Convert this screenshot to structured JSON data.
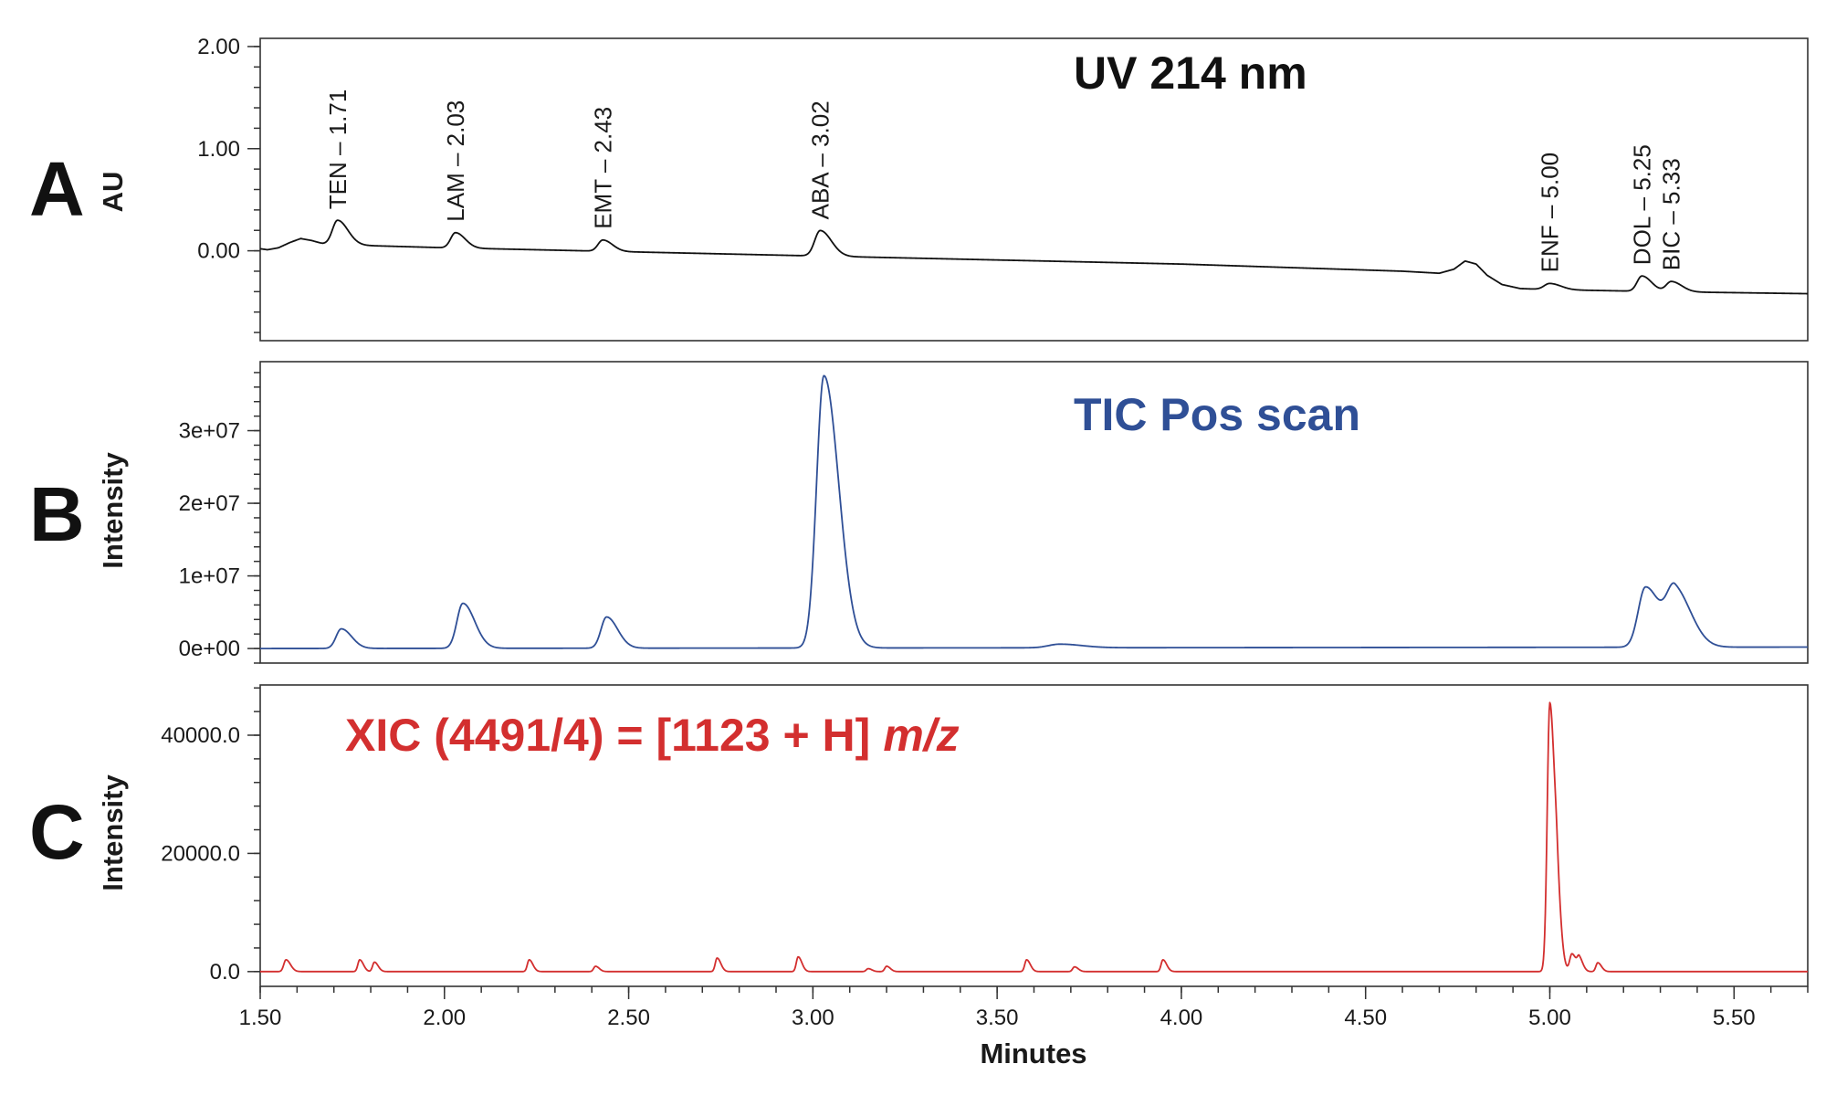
{
  "chart_data": [
    {
      "panel": "A",
      "type": "line",
      "title": "UV 214 nm",
      "ylabel": "AU",
      "xlabel": "",
      "xlim": [
        1.5,
        5.7
      ],
      "ylim": [
        -0.88,
        2.08
      ],
      "y_ticks": [
        "2.00",
        "1.00",
        "0.00"
      ],
      "y_tick_values": [
        2.0,
        1.0,
        0.0
      ],
      "color": "#111111",
      "grid": false,
      "baseline": [
        [
          1.5,
          0.02
        ],
        [
          1.52,
          0.01
        ],
        [
          1.55,
          0.03
        ],
        [
          1.58,
          0.08
        ],
        [
          1.61,
          0.12
        ],
        [
          1.64,
          0.1
        ],
        [
          1.67,
          0.07
        ],
        [
          1.7,
          0.06
        ],
        [
          2.0,
          0.03
        ],
        [
          3.0,
          -0.05
        ],
        [
          4.0,
          -0.13
        ],
        [
          4.6,
          -0.2
        ],
        [
          4.7,
          -0.22
        ],
        [
          4.74,
          -0.18
        ],
        [
          4.77,
          -0.1
        ],
        [
          4.8,
          -0.13
        ],
        [
          4.83,
          -0.24
        ],
        [
          4.87,
          -0.33
        ],
        [
          4.92,
          -0.37
        ],
        [
          5.0,
          -0.38
        ],
        [
          5.3,
          -0.4
        ],
        [
          5.7,
          -0.42
        ]
      ],
      "peaks": [
        {
          "label": "TEN – 1.71",
          "rt": 1.71,
          "height": 0.24,
          "width": 0.014
        },
        {
          "label": "LAM – 2.03",
          "rt": 2.03,
          "height": 0.15,
          "width": 0.013
        },
        {
          "label": "EMT – 2.43",
          "rt": 2.43,
          "height": 0.11,
          "width": 0.013
        },
        {
          "label": "ABA – 3.02",
          "rt": 3.02,
          "height": 0.25,
          "width": 0.015
        },
        {
          "label": "ENF – 5.00",
          "rt": 5.0,
          "height": 0.06,
          "width": 0.015
        },
        {
          "label": "DOL – 5.25",
          "rt": 5.25,
          "height": 0.15,
          "width": 0.013
        },
        {
          "label": "BIC – 5.33",
          "rt": 5.33,
          "height": 0.1,
          "width": 0.014
        }
      ]
    },
    {
      "panel": "B",
      "type": "line",
      "title": "TIC Pos scan",
      "ylabel": "Intensity",
      "xlabel": "",
      "xlim": [
        1.5,
        5.7
      ],
      "ylim": [
        -2000000,
        39500000
      ],
      "y_ticks": [
        "3e+07",
        "2e+07",
        "1e+07",
        "0e+00"
      ],
      "y_tick_values": [
        30000000,
        20000000,
        10000000,
        0
      ],
      "color": "#2f4f96",
      "grid": false,
      "baseline": [
        [
          1.5,
          0
        ],
        [
          3.6,
          100000
        ],
        [
          5.7,
          200000
        ]
      ],
      "peaks": [
        {
          "rt": 1.72,
          "height": 2700000,
          "width": 0.014
        },
        {
          "rt": 2.05,
          "height": 6200000,
          "width": 0.016
        },
        {
          "rt": 2.44,
          "height": 4300000,
          "width": 0.015
        },
        {
          "rt": 3.03,
          "height": 37500000,
          "width": 0.02
        },
        {
          "rt": 3.67,
          "height": 500000,
          "width": 0.03
        },
        {
          "rt": 5.26,
          "height": 8300000,
          "width": 0.02
        },
        {
          "rt": 5.34,
          "height": 7600000,
          "width": 0.022
        }
      ]
    },
    {
      "panel": "C",
      "type": "line",
      "title": "XIC (4491/4) = [1123 + H]",
      "title_suffix": "m/z",
      "ylabel": "Intensity",
      "xlabel": "Minutes",
      "xlim": [
        1.5,
        5.7
      ],
      "ylim": [
        -2500,
        48500
      ],
      "y_ticks": [
        "40000.0",
        "20000.0",
        "0.0"
      ],
      "y_tick_values": [
        40000,
        20000,
        0
      ],
      "x_ticks": [
        "1.50",
        "2.00",
        "2.50",
        "3.00",
        "3.50",
        "4.00",
        "4.50",
        "5.00",
        "5.50"
      ],
      "x_tick_values": [
        1.5,
        2.0,
        2.5,
        3.0,
        3.5,
        4.0,
        4.5,
        5.0,
        5.5
      ],
      "color": "#d32f2f",
      "grid": false,
      "baseline": [
        [
          1.5,
          0
        ],
        [
          5.7,
          0
        ]
      ],
      "peaks": [
        {
          "rt": 1.57,
          "height": 2000,
          "width": 0.006
        },
        {
          "rt": 1.77,
          "height": 2000,
          "width": 0.005
        },
        {
          "rt": 1.81,
          "height": 1600,
          "width": 0.005
        },
        {
          "rt": 2.23,
          "height": 2000,
          "width": 0.005
        },
        {
          "rt": 2.41,
          "height": 900,
          "width": 0.005
        },
        {
          "rt": 2.74,
          "height": 2300,
          "width": 0.005
        },
        {
          "rt": 2.96,
          "height": 2500,
          "width": 0.005
        },
        {
          "rt": 3.15,
          "height": 500,
          "width": 0.005
        },
        {
          "rt": 3.2,
          "height": 900,
          "width": 0.005
        },
        {
          "rt": 3.58,
          "height": 2000,
          "width": 0.005
        },
        {
          "rt": 3.71,
          "height": 800,
          "width": 0.005
        },
        {
          "rt": 3.95,
          "height": 2000,
          "width": 0.005
        },
        {
          "rt": 5.0,
          "height": 45500,
          "width": 0.007
        },
        {
          "rt": 5.02,
          "height": 6500,
          "width": 0.006
        },
        {
          "rt": 5.06,
          "height": 3000,
          "width": 0.006
        },
        {
          "rt": 5.08,
          "height": 2000,
          "width": 0.005
        },
        {
          "rt": 5.13,
          "height": 1500,
          "width": 0.005
        }
      ]
    }
  ]
}
